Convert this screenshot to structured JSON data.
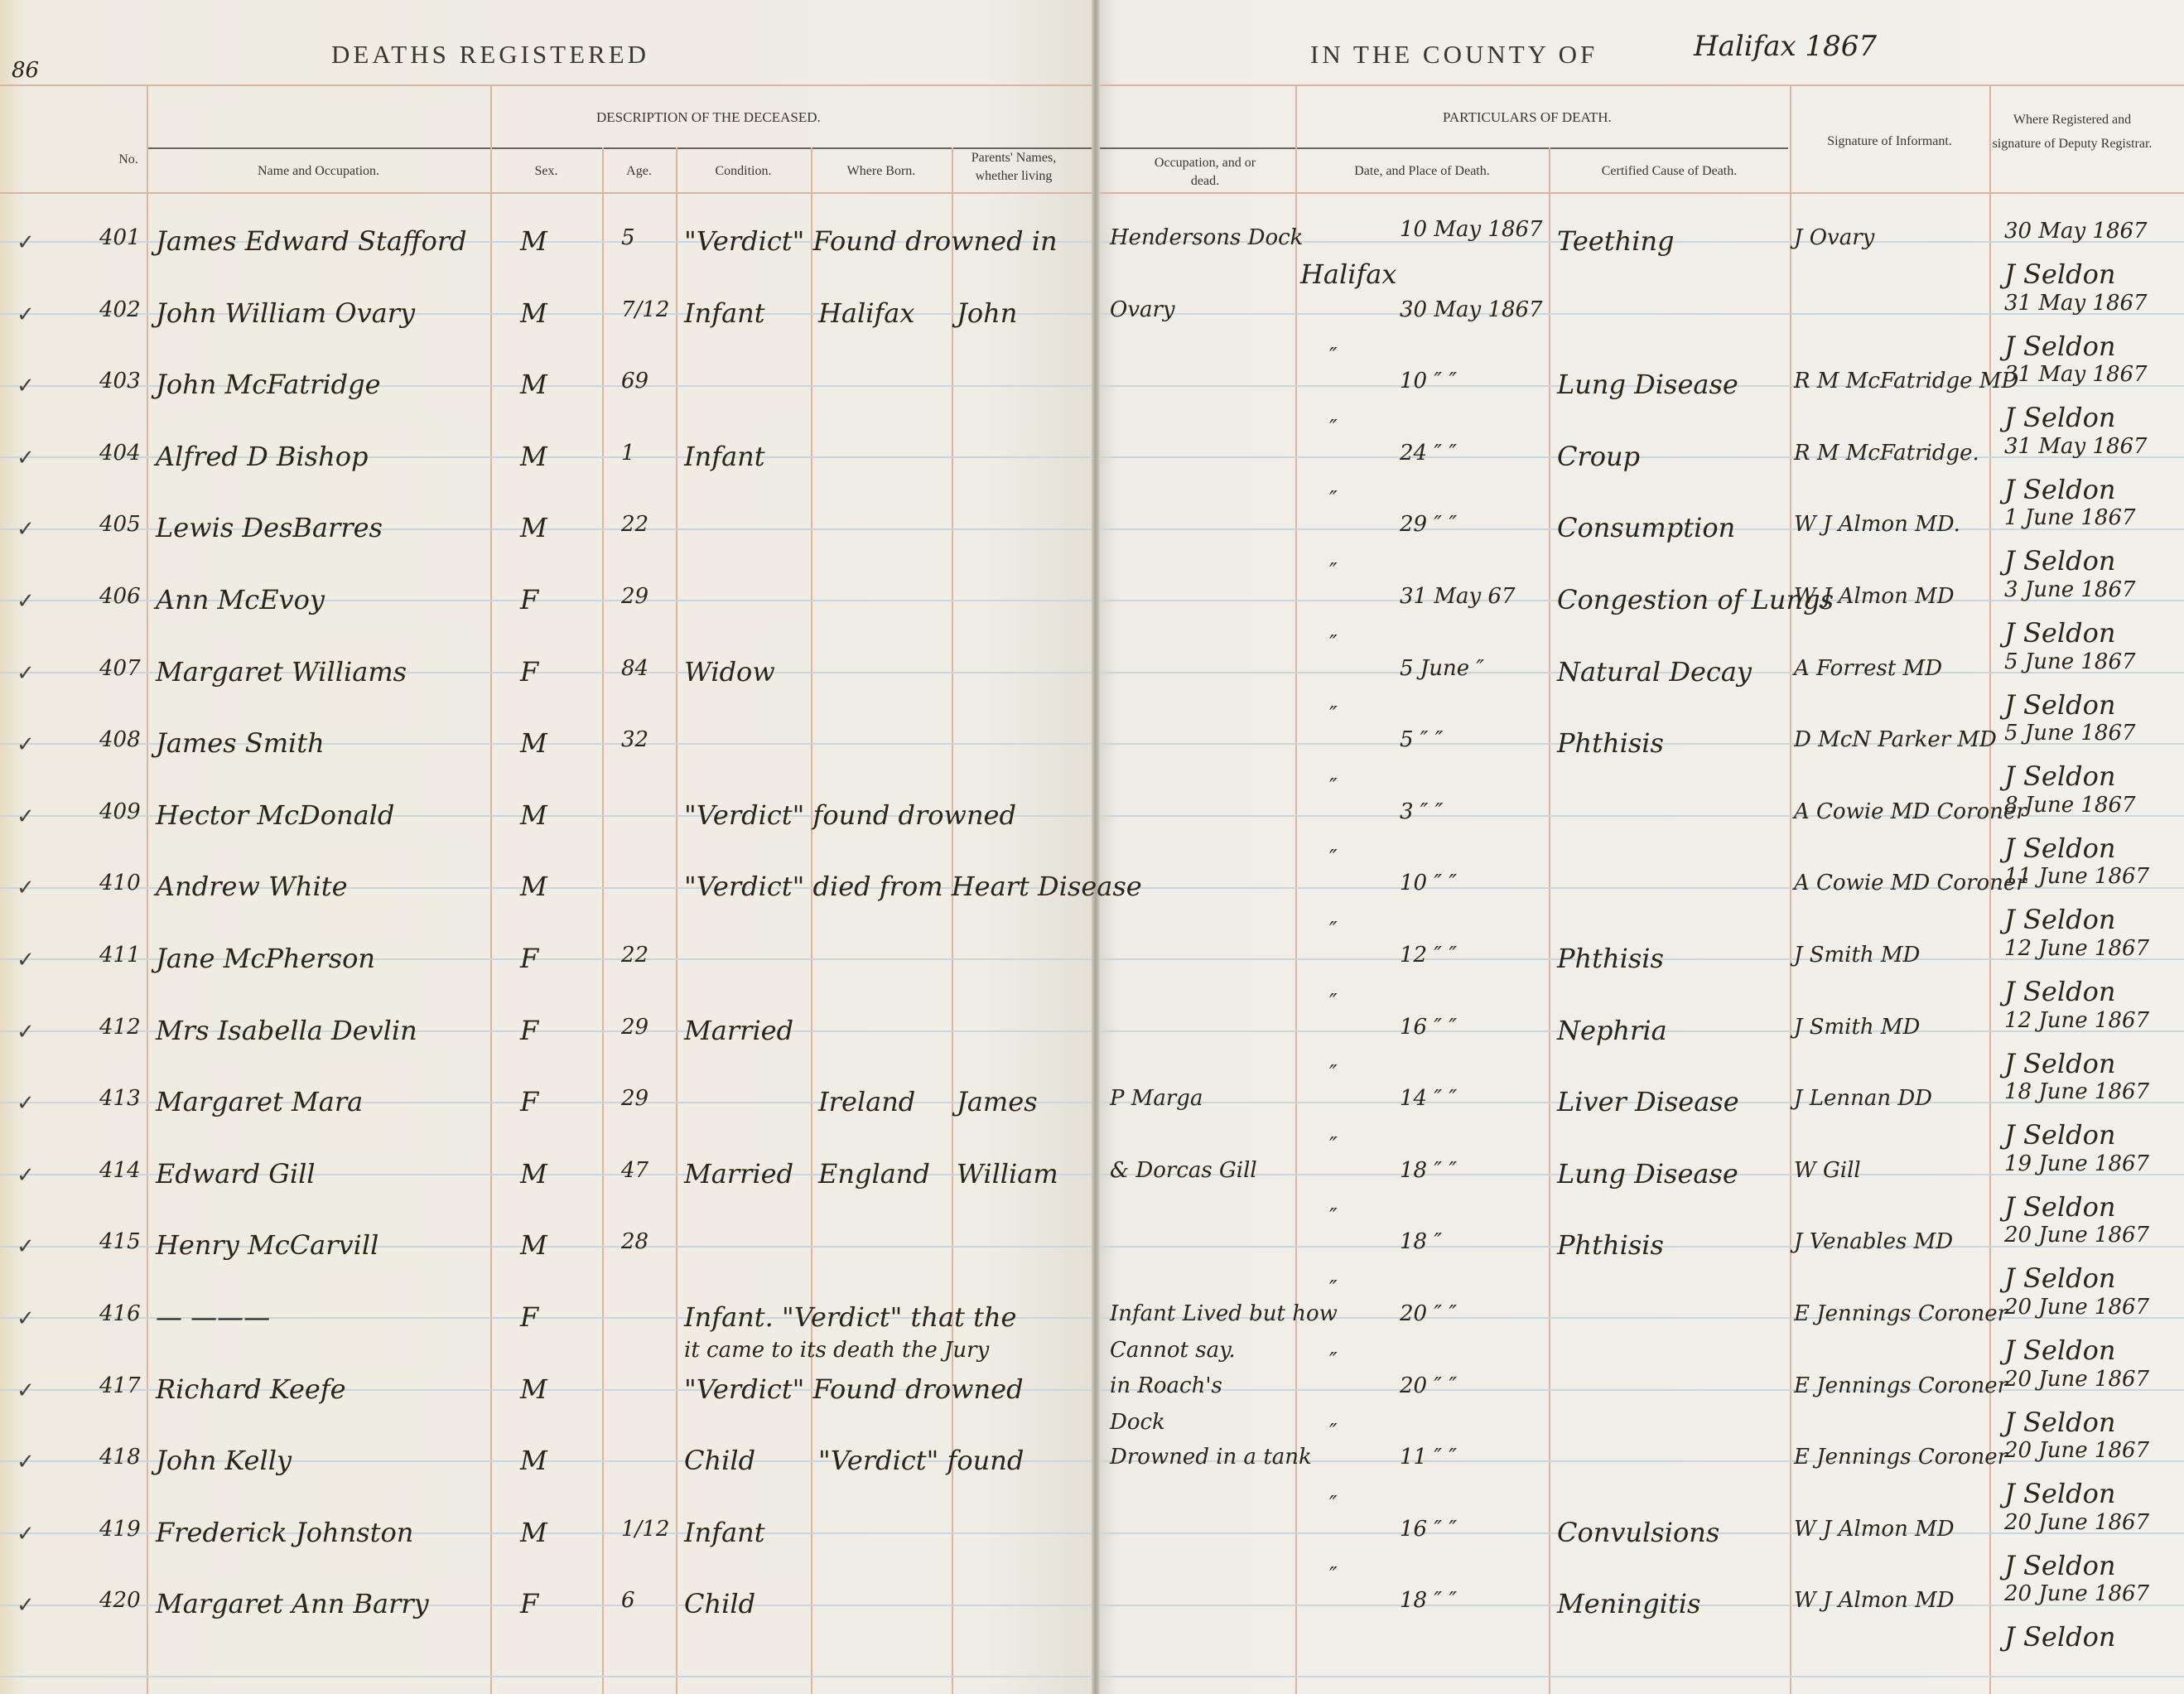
{
  "page_number": "86",
  "header": {
    "left_title": "DEATHS REGISTERED",
    "right_title": "IN THE COUNTY OF",
    "county_handwritten": "Halifax 1867"
  },
  "sections": {
    "description": "DESCRIPTION OF THE DECEASED.",
    "particulars": "PARTICULARS OF DEATH."
  },
  "columns": {
    "no": "No.",
    "name": "Name and Occupation.",
    "sex": "Sex.",
    "age": "Age.",
    "condition": "Condition.",
    "born": "Where Born.",
    "parents": "Parents' Names, whether living",
    "occupation": "Occupation, and or dead.",
    "date_place": "Date, and Place of Death.",
    "cause": "Certified Cause of Death.",
    "informant": "Signature of Informant.",
    "registrar": "Where Registered and signature of Deputy Registrar."
  },
  "entries": [
    {
      "no": "401",
      "name": "James Edward Stafford",
      "sex": "M",
      "age": "5",
      "condition": "\"Verdict\" Found drowned in",
      "born": "",
      "parents": "",
      "occupation": "Hendersons Dock",
      "place": "Halifax",
      "date": "10 May 1867",
      "cause": "Teething",
      "informant": "J Ovary",
      "reg_date": "30 May 1867",
      "registrar": "J Seldon"
    },
    {
      "no": "402",
      "name": "John William Ovary",
      "sex": "M",
      "age": "7/12",
      "condition": "Infant",
      "born": "Halifax",
      "parents": "John",
      "occupation": "Ovary",
      "place": "",
      "date": "30 May 1867",
      "cause": "",
      "informant": "",
      "reg_date": "31 May 1867",
      "registrar": "J Seldon"
    },
    {
      "no": "403",
      "name": "John McFatridge",
      "sex": "M",
      "age": "69",
      "condition": "",
      "born": "",
      "parents": "",
      "occupation": "",
      "place": "″",
      "date": "10 ″ ″",
      "cause": "Lung Disease",
      "informant": "R M McFatridge MD",
      "reg_date": "31 May 1867",
      "registrar": "J Seldon"
    },
    {
      "no": "404",
      "name": "Alfred D Bishop",
      "sex": "M",
      "age": "1",
      "condition": "Infant",
      "born": "",
      "parents": "",
      "occupation": "",
      "place": "″",
      "date": "24 ″ ″",
      "cause": "Croup",
      "informant": "R M McFatridge.",
      "reg_date": "31 May 1867",
      "registrar": "J Seldon"
    },
    {
      "no": "405",
      "name": "Lewis DesBarres",
      "sex": "M",
      "age": "22",
      "condition": "",
      "born": "",
      "parents": "",
      "occupation": "",
      "place": "″",
      "date": "29 ″ ″",
      "cause": "Consumption",
      "informant": "W J Almon MD.",
      "reg_date": "1 June 1867",
      "registrar": "J Seldon"
    },
    {
      "no": "406",
      "name": "Ann McEvoy",
      "sex": "F",
      "age": "29",
      "condition": "",
      "born": "",
      "parents": "",
      "occupation": "",
      "place": "″",
      "date": "31 May 67",
      "cause": "Congestion of Lungs",
      "informant": "W J Almon MD",
      "reg_date": "3 June 1867",
      "registrar": "J Seldon"
    },
    {
      "no": "407",
      "name": "Margaret Williams",
      "sex": "F",
      "age": "84",
      "condition": "Widow",
      "born": "",
      "parents": "",
      "occupation": "",
      "place": "″",
      "date": "5 June ″",
      "cause": "Natural Decay",
      "informant": "A Forrest MD",
      "reg_date": "5 June 1867",
      "registrar": "J Seldon"
    },
    {
      "no": "408",
      "name": "James Smith",
      "sex": "M",
      "age": "32",
      "condition": "",
      "born": "",
      "parents": "",
      "occupation": "",
      "place": "″",
      "date": "5 ″ ″",
      "cause": "Phthisis",
      "informant": "D McN Parker MD",
      "reg_date": "5 June 1867",
      "registrar": "J Seldon"
    },
    {
      "no": "409",
      "name": "Hector McDonald",
      "sex": "M",
      "age": "",
      "condition": "\"Verdict\" found drowned",
      "born": "",
      "parents": "",
      "occupation": "",
      "place": "″",
      "date": "3 ″ ″",
      "cause": "",
      "informant": "A Cowie MD Coroner",
      "reg_date": "8 June 1867",
      "registrar": "J Seldon"
    },
    {
      "no": "410",
      "name": "Andrew White",
      "sex": "M",
      "age": "",
      "condition": "\"Verdict\" died from Heart Disease",
      "born": "",
      "parents": "",
      "occupation": "",
      "place": "″",
      "date": "10 ″ ″",
      "cause": "",
      "informant": "A Cowie MD Coroner",
      "reg_date": "11 June 1867",
      "registrar": "J Seldon"
    },
    {
      "no": "411",
      "name": "Jane McPherson",
      "sex": "F",
      "age": "22",
      "condition": "",
      "born": "",
      "parents": "",
      "occupation": "",
      "place": "″",
      "date": "12 ″ ″",
      "cause": "Phthisis",
      "informant": "J Smith MD",
      "reg_date": "12 June 1867",
      "registrar": "J Seldon"
    },
    {
      "no": "412",
      "name": "Mrs Isabella Devlin",
      "sex": "F",
      "age": "29",
      "condition": "Married",
      "born": "",
      "parents": "",
      "occupation": "",
      "place": "″",
      "date": "16 ″ ″",
      "cause": "Nephria",
      "informant": "J Smith MD",
      "reg_date": "12 June 1867",
      "registrar": "J Seldon"
    },
    {
      "no": "413",
      "name": "Margaret Mara",
      "sex": "F",
      "age": "29",
      "condition": "",
      "born": "Ireland",
      "parents": "James",
      "occupation": "P Marga",
      "place": "″",
      "date": "14 ″ ″",
      "cause": "Liver Disease",
      "informant": "J Lennan DD",
      "reg_date": "18 June 1867",
      "registrar": "J Seldon"
    },
    {
      "no": "414",
      "name": "Edward Gill",
      "sex": "M",
      "age": "47",
      "condition": "Married",
      "born": "England",
      "parents": "William",
      "occupation": "& Dorcas Gill",
      "place": "″",
      "date": "18 ″ ″",
      "cause": "Lung Disease",
      "informant": "W Gill",
      "reg_date": "19 June 1867",
      "registrar": "J Seldon"
    },
    {
      "no": "415",
      "name": "Henry McCarvill",
      "sex": "M",
      "age": "28",
      "condition": "",
      "born": "",
      "parents": "",
      "occupation": "",
      "place": "″",
      "date": "18 ″",
      "cause": "Phthisis",
      "informant": "J Venables MD",
      "reg_date": "20 June 1867",
      "registrar": "J Seldon"
    },
    {
      "no": "416",
      "name": "— ———",
      "sex": "F",
      "age": "",
      "condition": "Infant. \"Verdict\" that the",
      "condition2": "it came to its death the Jury",
      "born": "",
      "parents": "",
      "occupation": "Infant Lived but how",
      "occupation2": "Cannot say.",
      "place": "″",
      "date": "20 ″ ″",
      "cause": "",
      "informant": "E Jennings Coroner",
      "reg_date": "20 June 1867",
      "registrar": "J Seldon"
    },
    {
      "no": "417",
      "name": "Richard Keefe",
      "sex": "M",
      "age": "",
      "condition": "\"Verdict\" Found drowned",
      "born": "",
      "parents": "",
      "occupation": "in Roach's",
      "occupation2": "Dock",
      "place": "″",
      "date": "20 ″ ″",
      "cause": "",
      "informant": "E Jennings Coroner",
      "reg_date": "20 June 1867",
      "registrar": "J Seldon"
    },
    {
      "no": "418",
      "name": "John Kelly",
      "sex": "M",
      "age": "",
      "condition": "Child",
      "born": "\"Verdict\" found",
      "parents": "",
      "occupation": "Drowned in a tank",
      "place": "″",
      "date": "11 ″ ″",
      "cause": "",
      "informant": "E Jennings Coroner",
      "reg_date": "20 June 1867",
      "registrar": "J Seldon"
    },
    {
      "no": "419",
      "name": "Frederick Johnston",
      "sex": "M",
      "age": "1/12",
      "condition": "Infant",
      "born": "",
      "parents": "",
      "occupation": "",
      "place": "″",
      "date": "16 ″ ″",
      "cause": "Convulsions",
      "informant": "W J Almon MD",
      "reg_date": "20 June 1867",
      "registrar": "J Seldon"
    },
    {
      "no": "420",
      "name": "Margaret Ann Barry",
      "sex": "F",
      "age": "6",
      "condition": "Child",
      "born": "",
      "parents": "",
      "occupation": "",
      "place": "″",
      "date": "18 ″ ″",
      "cause": "Meningitis",
      "informant": "W J Almon MD",
      "reg_date": "20 June 1867",
      "registrar": "J Seldon"
    }
  ],
  "colors": {
    "paper": "#f0ede5",
    "column_rule": "#ddb3a4",
    "row_rule": "#c9d6de",
    "ink": "#2b2519"
  }
}
